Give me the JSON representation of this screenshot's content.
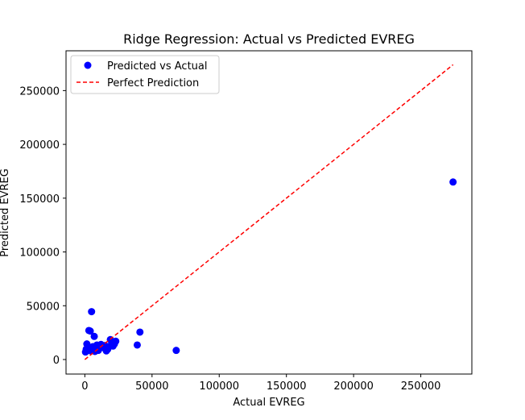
{
  "chart_data": {
    "type": "scatter",
    "title": "Ridge Regression: Actual vs Predicted EVREG",
    "xlabel": "Actual EVREG",
    "ylabel": "Predicted EVREG",
    "xlim": [
      -14000,
      288000
    ],
    "ylim": [
      -13500,
      287000
    ],
    "xticks": [
      0,
      50000,
      100000,
      150000,
      200000,
      250000
    ],
    "yticks": [
      0,
      50000,
      100000,
      150000,
      200000,
      250000
    ],
    "grid": false,
    "legend_position": "top-left",
    "series": [
      {
        "name": "Predicted vs Actual",
        "kind": "scatter",
        "color": "#0000ff",
        "points": [
          [
            500,
            7000
          ],
          [
            1000,
            9500
          ],
          [
            1500,
            14500
          ],
          [
            2000,
            8500
          ],
          [
            2500,
            11000
          ],
          [
            3000,
            27000
          ],
          [
            3500,
            9000
          ],
          [
            4000,
            26500
          ],
          [
            4500,
            8000
          ],
          [
            5000,
            44500
          ],
          [
            5500,
            10000
          ],
          [
            6000,
            12000
          ],
          [
            7000,
            21500
          ],
          [
            7500,
            7500
          ],
          [
            8000,
            11000
          ],
          [
            9000,
            13500
          ],
          [
            10000,
            8500
          ],
          [
            11000,
            10500
          ],
          [
            12000,
            14000
          ],
          [
            13000,
            12500
          ],
          [
            14000,
            11000
          ],
          [
            15000,
            13000
          ],
          [
            16000,
            8000
          ],
          [
            17000,
            9500
          ],
          [
            18000,
            12000
          ],
          [
            19000,
            18500
          ],
          [
            20000,
            15000
          ],
          [
            21000,
            12500
          ],
          [
            22000,
            14500
          ],
          [
            23000,
            17000
          ],
          [
            39000,
            13500
          ],
          [
            41000,
            25500
          ],
          [
            68000,
            8500
          ],
          [
            274000,
            165000
          ]
        ]
      },
      {
        "name": "Perfect Prediction",
        "kind": "line",
        "style": "dashed",
        "color": "#ff0000",
        "points": [
          [
            0,
            0
          ],
          [
            274000,
            274000
          ]
        ]
      }
    ]
  }
}
